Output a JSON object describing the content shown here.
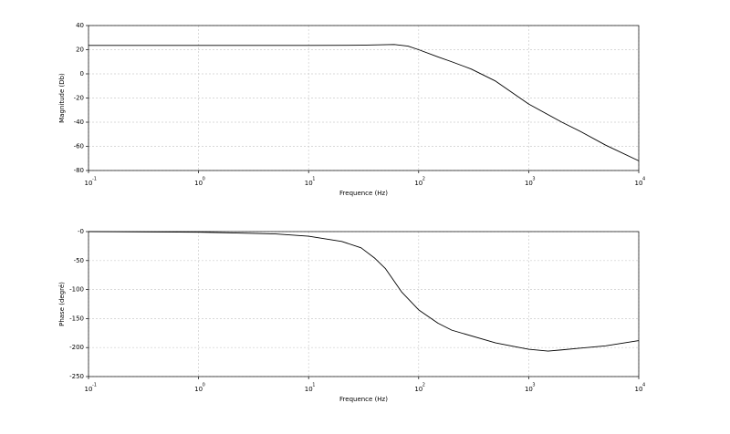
{
  "chart_data": [
    {
      "type": "line",
      "xlabel": "Frequence (Hz)",
      "ylabel": "Magnitude (Db)",
      "xscale": "log",
      "grid": true,
      "xlim": [
        0.1,
        10000
      ],
      "ylim": [
        -80,
        40
      ],
      "xticks": [
        {
          "value": 0.1,
          "label": "10",
          "exponent": "-1"
        },
        {
          "value": 1,
          "label": "10",
          "exponent": "0"
        },
        {
          "value": 10,
          "label": "10",
          "exponent": "1"
        },
        {
          "value": 100,
          "label": "10",
          "exponent": "2"
        },
        {
          "value": 1000,
          "label": "10",
          "exponent": "3"
        },
        {
          "value": 10000,
          "label": "10",
          "exponent": "4"
        }
      ],
      "yticks": [
        40,
        20,
        0,
        -20,
        -40,
        -60,
        -80
      ],
      "x": [
        0.1,
        1,
        10,
        30,
        60,
        80,
        100,
        150,
        200,
        300,
        500,
        1000,
        2000,
        3000,
        5000,
        10000
      ],
      "series": [
        {
          "color": "#000000",
          "values": [
            23.5,
            23.5,
            23.5,
            23.7,
            24.3,
            23,
            20,
            14,
            10,
            4,
            -6,
            -25,
            -40,
            -48,
            -59,
            -72
          ]
        }
      ]
    },
    {
      "type": "line",
      "xlabel": "Frequence (Hz)",
      "ylabel": "Phase (degré)",
      "xscale": "log",
      "grid": true,
      "xlim": [
        0.1,
        10000
      ],
      "ylim": [
        -250,
        0
      ],
      "xticks": [
        {
          "value": 0.1,
          "label": "10",
          "exponent": "-1"
        },
        {
          "value": 1,
          "label": "10",
          "exponent": "0"
        },
        {
          "value": 10,
          "label": "10",
          "exponent": "1"
        },
        {
          "value": 100,
          "label": "10",
          "exponent": "2"
        },
        {
          "value": 1000,
          "label": "10",
          "exponent": "3"
        },
        {
          "value": 10000,
          "label": "10",
          "exponent": "4"
        }
      ],
      "yticks": [
        {
          "value": 0,
          "label": "-0"
        },
        -50,
        -100,
        -150,
        -200,
        -250
      ],
      "x": [
        0.1,
        1,
        5,
        10,
        20,
        30,
        40,
        50,
        70,
        100,
        150,
        200,
        500,
        1000,
        1500,
        2000,
        5000,
        10000
      ],
      "series": [
        {
          "color": "#000000",
          "values": [
            0,
            -1,
            -4,
            -8,
            -17,
            -28,
            -46,
            -64,
            -104,
            -135,
            -158,
            -170,
            -192,
            -203,
            -206,
            -204,
            -197,
            -188
          ]
        }
      ]
    }
  ]
}
